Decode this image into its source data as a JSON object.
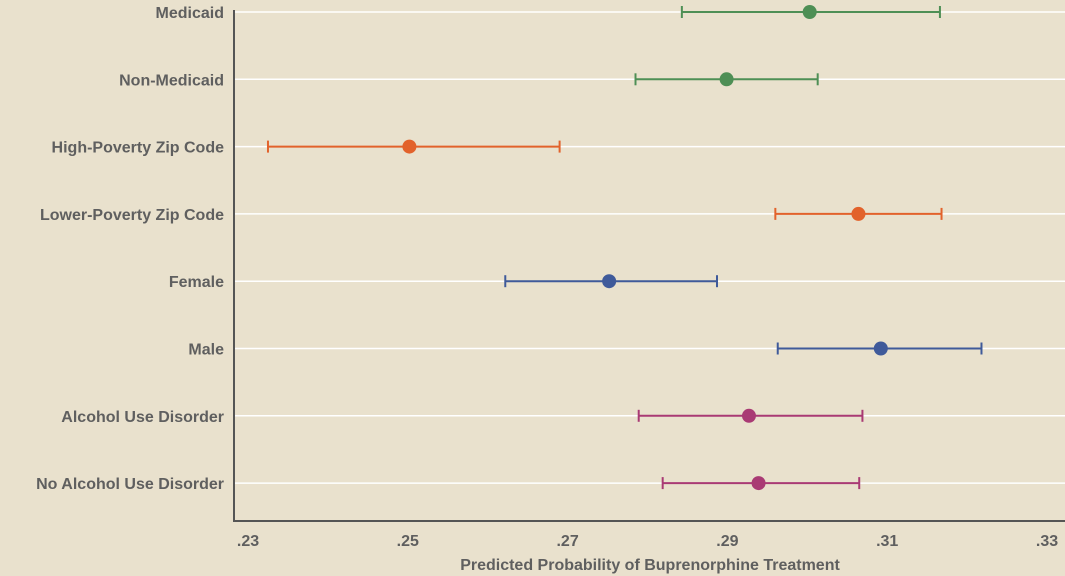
{
  "chart_data": {
    "type": "scatter",
    "subtype": "dot-and-whisker",
    "title": "",
    "xlabel": "Predicted Probability of Buprenorphine Treatment",
    "ylabel": "",
    "xlim": [
      0.23,
      0.33
    ],
    "xticks": [
      {
        "value": 0.23,
        "label": ".23"
      },
      {
        "value": 0.25,
        "label": ".25"
      },
      {
        "value": 0.27,
        "label": ".27"
      },
      {
        "value": 0.29,
        "label": ".29"
      },
      {
        "value": 0.31,
        "label": ".31"
      },
      {
        "value": 0.33,
        "label": ".33"
      }
    ],
    "grid": "horizontal",
    "legend": "none",
    "categories": [
      "Medicaid",
      "Non-Medicaid",
      "High-Poverty Zip Code",
      "Lower-Poverty Zip Code",
      "Female",
      "Male",
      "Alcohol Use Disorder",
      "No Alcohol Use Disorder"
    ],
    "points": [
      {
        "category": "Medicaid",
        "estimate": 0.3003,
        "ci_low": 0.2843,
        "ci_high": 0.3166,
        "color": "#4e8f55"
      },
      {
        "category": "Non-Medicaid",
        "estimate": 0.2899,
        "ci_low": 0.2785,
        "ci_high": 0.3013,
        "color": "#4e8f55"
      },
      {
        "category": "High-Poverty Zip Code",
        "estimate": 0.2502,
        "ci_low": 0.2325,
        "ci_high": 0.269,
        "color": "#e2622b"
      },
      {
        "category": "Lower-Poverty Zip Code",
        "estimate": 0.3064,
        "ci_low": 0.296,
        "ci_high": 0.3168,
        "color": "#e2622b"
      },
      {
        "category": "Female",
        "estimate": 0.2752,
        "ci_low": 0.2622,
        "ci_high": 0.2887,
        "color": "#3f5a9a"
      },
      {
        "category": "Male",
        "estimate": 0.3092,
        "ci_low": 0.2963,
        "ci_high": 0.3218,
        "color": "#3f5a9a"
      },
      {
        "category": "Alcohol Use Disorder",
        "estimate": 0.2927,
        "ci_low": 0.2789,
        "ci_high": 0.3069,
        "color": "#a93a74"
      },
      {
        "category": "No Alcohol Use Disorder",
        "estimate": 0.2939,
        "ci_low": 0.2819,
        "ci_high": 0.3065,
        "color": "#a93a74"
      }
    ],
    "colors": {
      "background": "#e9e1cd",
      "gridline": "#ffffff",
      "axis": "#555555",
      "text": "#5f5f5f"
    }
  }
}
